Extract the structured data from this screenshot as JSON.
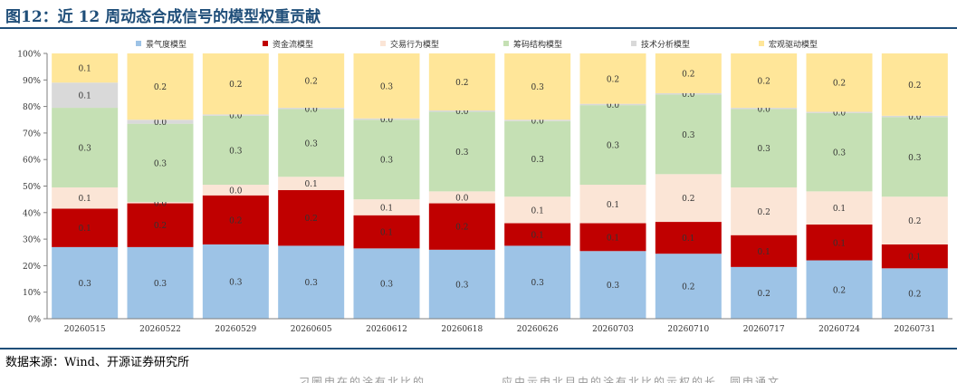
{
  "title": "图12：近 12 周动态合成信号的模型权重贡献",
  "source": "数据来源：Wind、开源证券研究所",
  "cut_text": "刁圖申在的涂有北比的　　　　　　应由示申北目由的涂有北比的示权的长　圆申通文",
  "chart_data": {
    "type": "bar",
    "stacked": true,
    "percent": true,
    "categories": [
      "20260515",
      "20260522",
      "20260529",
      "20260605",
      "20260612",
      "20260618",
      "20260626",
      "20260703",
      "20260710",
      "20260717",
      "20260724",
      "20260731"
    ],
    "ylim": [
      0,
      100
    ],
    "yticks": [
      "0%",
      "10%",
      "20%",
      "30%",
      "40%",
      "50%",
      "60%",
      "70%",
      "80%",
      "90%",
      "100%"
    ],
    "legend_position": "top",
    "series": [
      {
        "name": "景气度模型",
        "color": "#9dc3e6",
        "values": [
          27,
          27,
          28,
          27.5,
          26.5,
          26,
          27.5,
          25.5,
          24.5,
          19.5,
          22,
          19
        ],
        "labels": [
          "0.3",
          "0.3",
          "0.3",
          "0.3",
          "0.3",
          "0.3",
          "0.3",
          "0.3",
          "0.2",
          "0.2",
          "0.2",
          "0.2"
        ]
      },
      {
        "name": "资金流模型",
        "color": "#c00000",
        "values": [
          14.5,
          16.5,
          18.5,
          21,
          12.5,
          17.5,
          8.5,
          10.5,
          12,
          12,
          13.5,
          9
        ],
        "labels": [
          "0.1",
          "0.2",
          "0.2",
          "0.2",
          "0.1",
          "0.2",
          "0.1",
          "0.1",
          "0.1",
          "0.1",
          "0.1",
          "0.1"
        ]
      },
      {
        "name": "交易行为模型",
        "color": "#fbe5d6",
        "values": [
          8,
          0.5,
          4,
          5,
          6,
          4.5,
          10,
          14.5,
          18,
          18,
          12.5,
          18
        ],
        "labels": [
          "0.1",
          "0.0",
          "0.0",
          "0.1",
          "0.1",
          "0.0",
          "0.1",
          "0.1",
          "0.2",
          "0.2",
          "0.1",
          "0.2"
        ]
      },
      {
        "name": "筹码结构模型",
        "color": "#c5e0b4",
        "values": [
          30,
          29.5,
          26,
          25.5,
          30,
          30,
          28.5,
          30,
          30,
          29.5,
          29.5,
          30
        ],
        "labels": [
          "0.3",
          "0.3",
          "0.3",
          "0.3",
          "0.3",
          "0.3",
          "0.3",
          "0.3",
          "0.3",
          "0.3",
          "0.3",
          "0.3"
        ]
      },
      {
        "name": "技术分析模型",
        "color": "#d9d9d9",
        "values": [
          9.5,
          1.5,
          0.5,
          0.5,
          0.5,
          0.5,
          0.5,
          0.5,
          0.5,
          0.5,
          0.5,
          0.5
        ],
        "labels": [
          "0.1",
          "0.0",
          "0.0",
          "0.0",
          "0.0",
          "0.0",
          "0.0",
          "0.0",
          "0.0",
          "0.0",
          "0.0",
          "0.0"
        ]
      },
      {
        "name": "宏观驱动模型",
        "color": "#ffe699",
        "values": [
          11,
          25,
          23,
          20.5,
          24.5,
          21.5,
          25,
          19,
          15,
          20.5,
          22,
          23.5
        ],
        "labels": [
          "0.1",
          "0.2",
          "0.2",
          "0.2",
          "0.3",
          "0.2",
          "0.3",
          "0.2",
          "0.2",
          "0.2",
          "0.2",
          "0.2"
        ]
      }
    ]
  }
}
